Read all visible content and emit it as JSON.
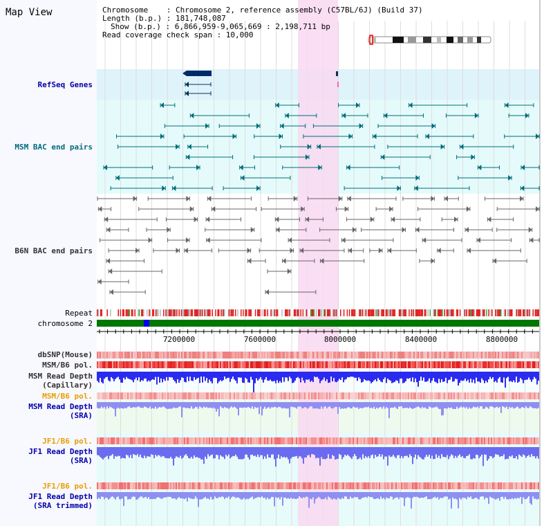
{
  "title": "Map View",
  "info": {
    "chromosome": "Chromosome    : Chromosome 2, reference assembly (C57BL/6J) (Build 37)",
    "length": "Length (b.p.) : 181,748,087",
    "show": "Show (b.p.) : 6,866,959-9,065,669 : 2,198,711 bp",
    "span": "Read coverage check span : 10,000"
  },
  "tracks": {
    "refseq": "RefSeq Genes",
    "msm_bac": "MSM BAC end pairs",
    "b6n_bac": "B6N BAC end pairs",
    "repeat": "Repeat",
    "chromosome": "chromosome 2",
    "dbsnp": "dbSNP(Mouse)",
    "msm_pol": "MSM/B6 pol.",
    "msm_depth_cap_1": "MSM Read Depth",
    "msm_depth_cap_2": "(Capillary)",
    "msm_pol_sra": "MSM/B6 pol.",
    "msm_depth_sra_1": "MSM Read Depth",
    "msm_depth_sra_2": "(SRA)",
    "jf1_pol": "JF1/B6 pol.",
    "jf1_depth_1": "JF1 Read Depth",
    "jf1_depth_2": "(SRA)",
    "jf1_pol_trim": "JF1/B6 pol.",
    "jf1_depth_trim_1": "JF1 Read Depth",
    "jf1_depth_trim_2": "(SRA trimmed)"
  },
  "axis": {
    "ticks": [
      "7200000",
      "7600000",
      "8000000",
      "8400000",
      "8800000"
    ]
  },
  "colors": {
    "refseq_bg": "#dff3fb",
    "msm_bg": "#e5fbfb",
    "highlight": "#f9d8f1",
    "chromosome": "#007700",
    "depth_blue": "#2b2bf0",
    "depth_light": "#8f8ff2",
    "pol_red": "#f04040",
    "feature_teal": "#006c7a",
    "feature_grey": "#666666"
  }
}
